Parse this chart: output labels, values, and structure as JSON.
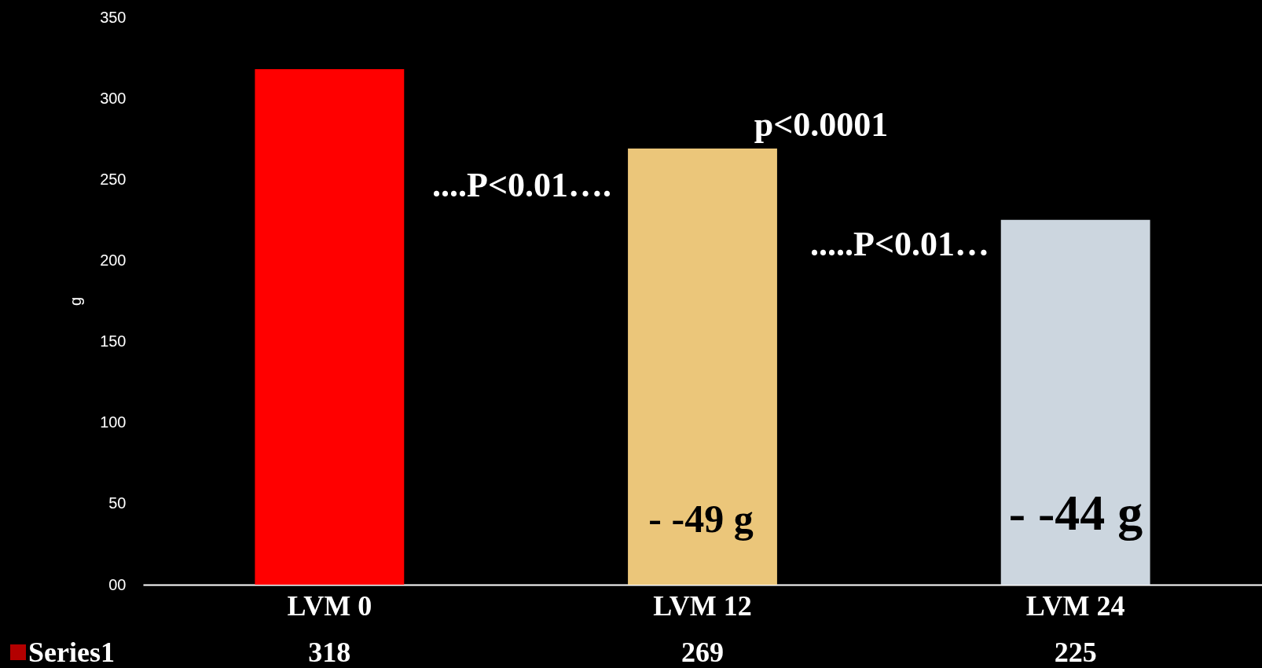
{
  "chart_data": {
    "type": "bar",
    "categories": [
      "LVM 0",
      "LVM 12",
      "LVM 24"
    ],
    "series": [
      {
        "name": "Series1",
        "color": "#ff0000",
        "colors": [
          "#ff0000",
          "#ebc67a",
          "#ccd6df"
        ],
        "values": [
          318,
          269,
          225
        ]
      }
    ],
    "ylabel": "g",
    "ylim": [
      0,
      350
    ],
    "yticks": [
      {
        "value": 0,
        "label": "00"
      },
      50,
      100,
      150,
      200,
      250,
      300,
      350
    ],
    "data_labels": true,
    "grid": false,
    "legend": "bottom left",
    "annotations": [
      "p<0.0001",
      "....P<0.01….",
      ".....P<0.01…",
      "- -49 g",
      "- -44 g"
    ]
  }
}
